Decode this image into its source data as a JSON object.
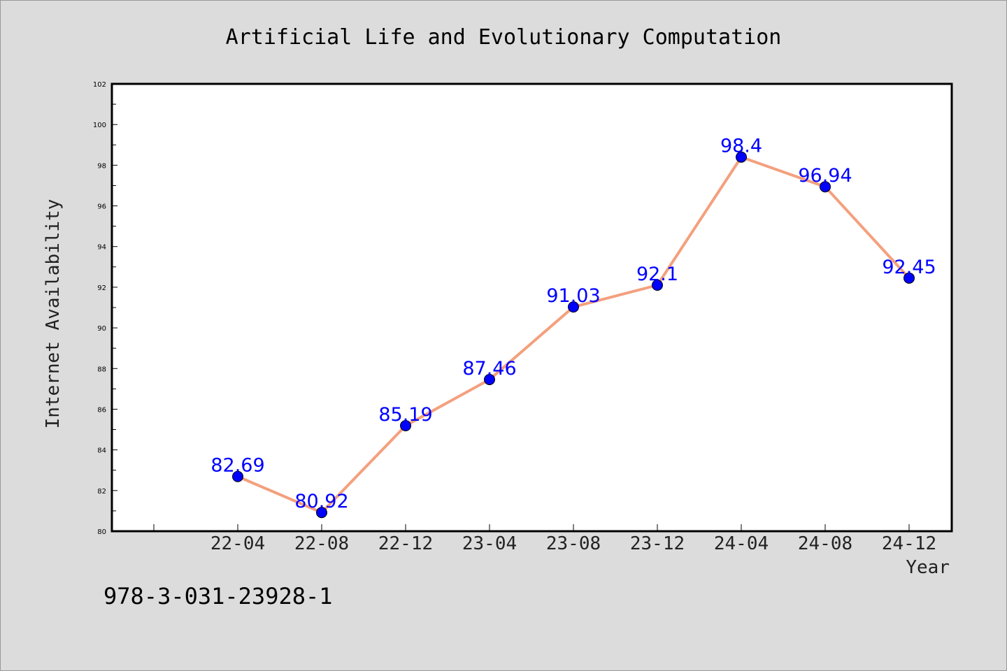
{
  "chart_data": {
    "type": "line",
    "title": "Artificial Life and Evolutionary Computation",
    "xlabel": "Year",
    "ylabel": "Internet Availability",
    "categories": [
      "22-04",
      "22-08",
      "22-12",
      "23-04",
      "23-08",
      "23-12",
      "24-04",
      "24-08",
      "24-12"
    ],
    "series": [
      {
        "values": [
          82.69,
          80.92,
          85.19,
          87.46,
          91.03,
          92.1,
          98.4,
          96.94,
          92.45
        ],
        "labels": [
          "82.69",
          "80.92",
          "85.19",
          "87.46",
          "91.03",
          "92.1",
          "98.4",
          "96.94",
          "92.45"
        ],
        "line_color": "#f4a07e",
        "marker_color": "#0000ff",
        "label_color": "#0000ff"
      }
    ],
    "ylim": [
      80,
      102
    ],
    "yticks": [
      80,
      82,
      84,
      86,
      88,
      90,
      92,
      94,
      96,
      98,
      100,
      102
    ],
    "grid": false,
    "legend": "none"
  },
  "footer_text": "978-3-031-23928-1",
  "colors": {
    "background": "#dcdcdc",
    "plot_background": "#ffffff",
    "axis": "#000000"
  }
}
